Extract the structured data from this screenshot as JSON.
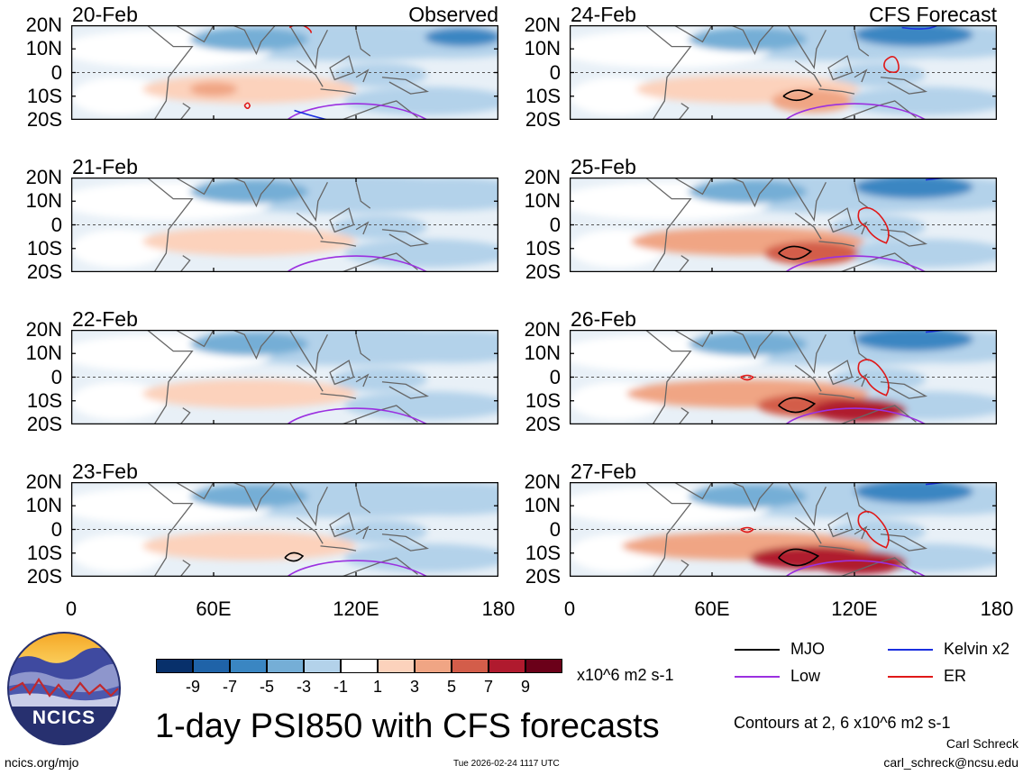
{
  "chart_data": {
    "type": "heatmap",
    "title": "1-day PSI850 with CFS forecasts",
    "variable": "PSI850 (850-hPa streamfunction anomaly)",
    "units": "x10^6 m2 s-1",
    "x_ticks": [
      "0",
      "60E",
      "120E",
      "180"
    ],
    "x_range": [
      0,
      180
    ],
    "y_ticks": [
      "20N",
      "10N",
      "0",
      "10S",
      "20S"
    ],
    "y_range": [
      -20,
      20
    ],
    "observed_label": "Observed",
    "forecast_label": "CFS Forecast",
    "panels": [
      {
        "date": "20-Feb",
        "source": "observed"
      },
      {
        "date": "21-Feb",
        "source": "observed"
      },
      {
        "date": "22-Feb",
        "source": "observed"
      },
      {
        "date": "23-Feb",
        "source": "observed"
      },
      {
        "date": "24-Feb",
        "source": "forecast"
      },
      {
        "date": "25-Feb",
        "source": "forecast"
      },
      {
        "date": "26-Feb",
        "source": "forecast"
      },
      {
        "date": "27-Feb",
        "source": "forecast"
      }
    ],
    "colorbar": {
      "labels": [
        "-9",
        "-7",
        "-5",
        "-3",
        "-1",
        "1",
        "3",
        "5",
        "7",
        "9"
      ],
      "colors": [
        "#08306b",
        "#1f63a8",
        "#3a86c2",
        "#75aed6",
        "#b3d2ea",
        "#ffffff",
        "#fcd2bc",
        "#f0a584",
        "#d35d4a",
        "#b01a2e",
        "#6b0019"
      ]
    },
    "contour_legend": [
      {
        "label": "MJO",
        "color": "#000000"
      },
      {
        "label": "Low",
        "color": "#9b30e0"
      },
      {
        "label": "Kelvin x2",
        "color": "#1a2fe0"
      },
      {
        "label": "ER",
        "color": "#e01818"
      }
    ],
    "contour_note": "Contours at 2, 6 x10^6 m2 s-1"
  },
  "footer": {
    "logo_text": "NCICS",
    "url": "ncics.org/mjo",
    "timestamp": "Tue 2026-02-24 1117 UTC",
    "author": "Carl Schreck",
    "email": "carl_schreck@ncsu.edu"
  }
}
